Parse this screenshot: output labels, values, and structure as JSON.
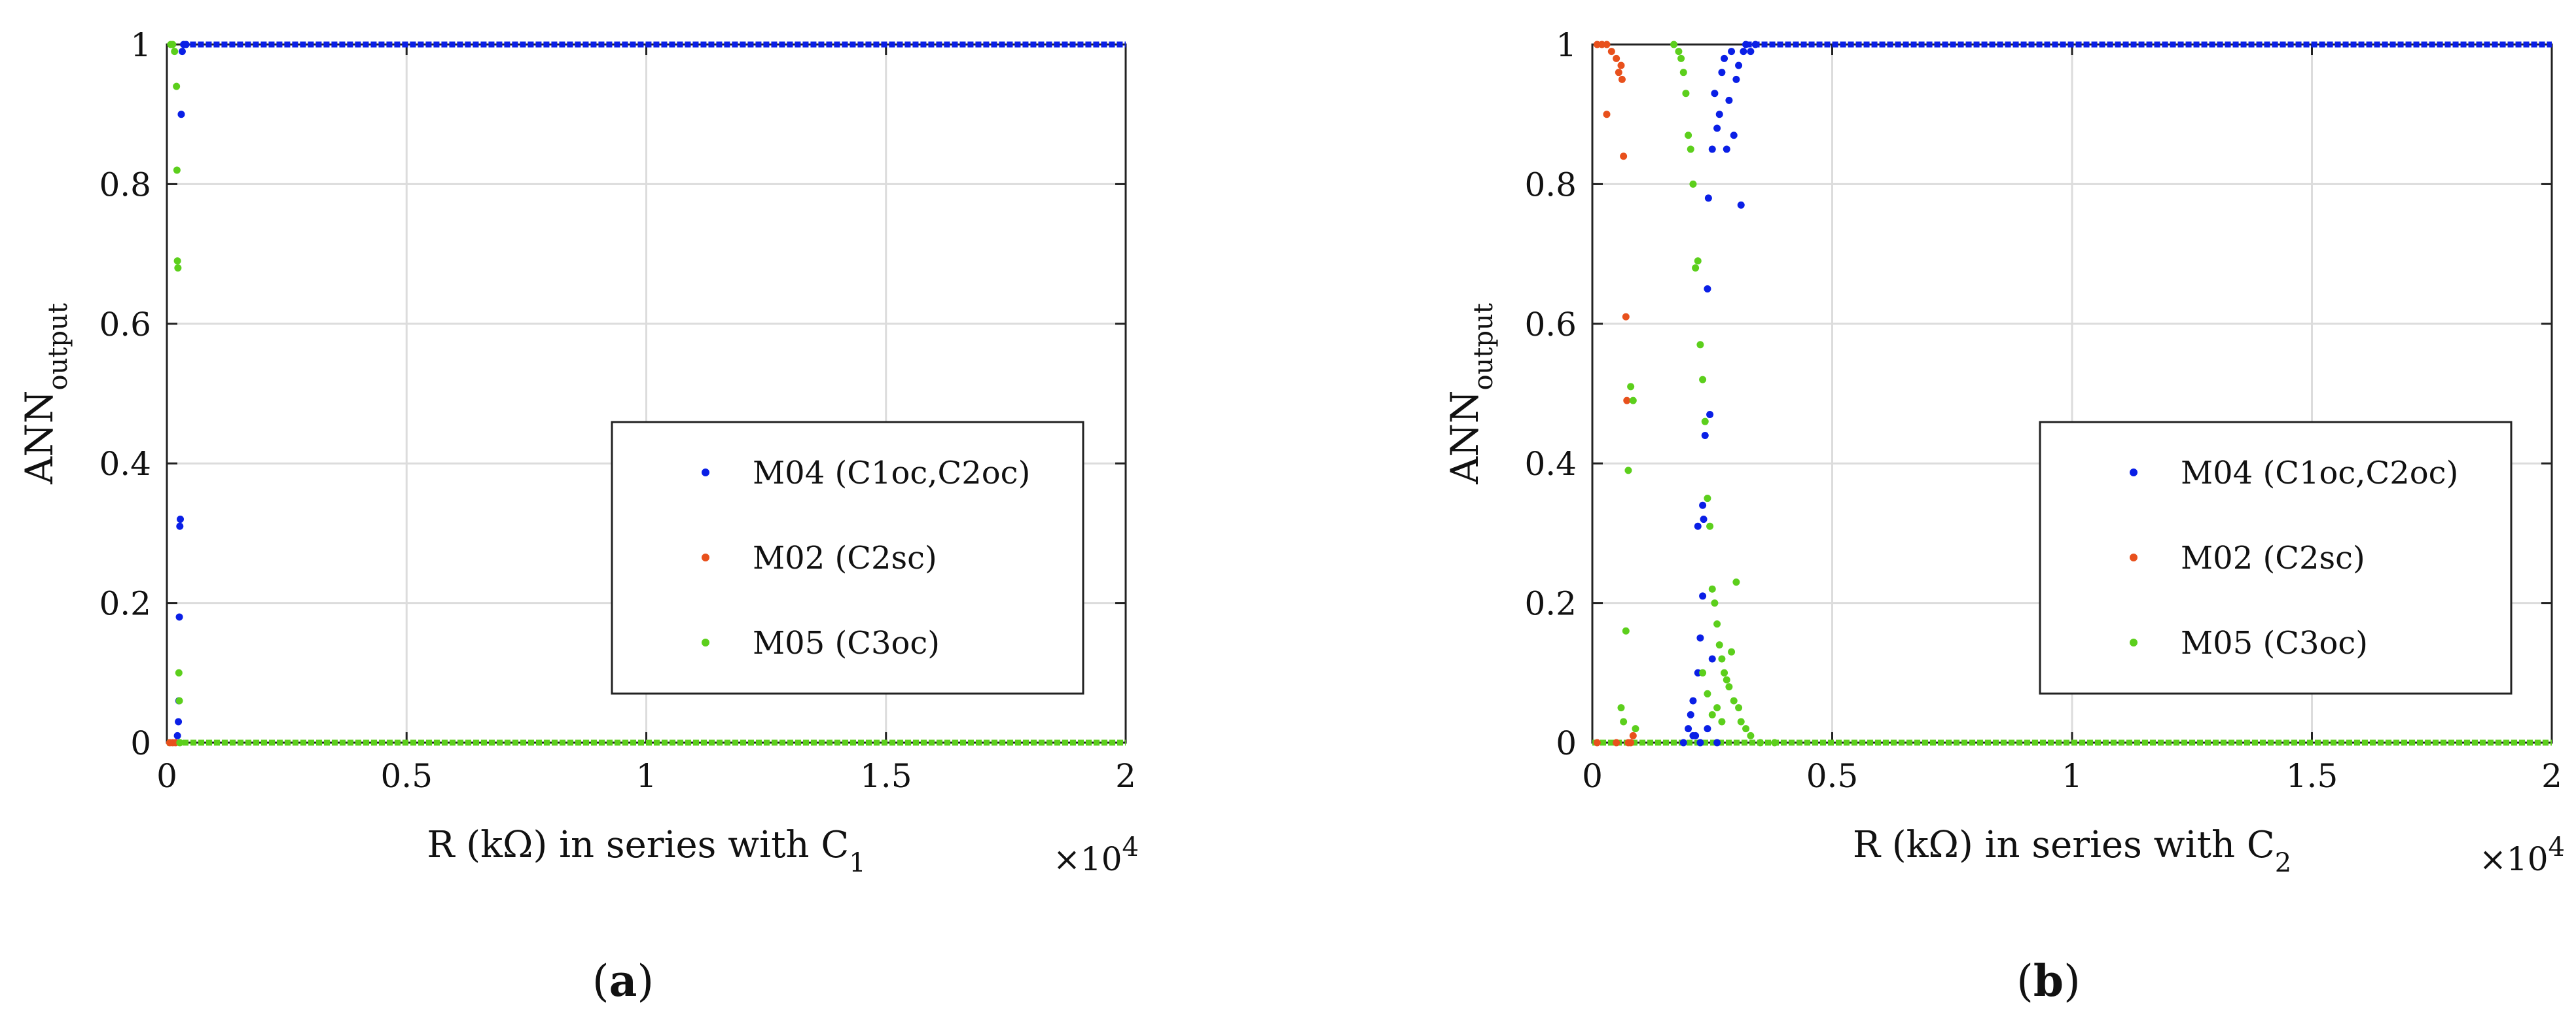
{
  "chart_data": [
    {
      "type": "scatter",
      "panel": "a",
      "caption_letter": "a",
      "xlabel_main": "R (kΩ) in series with C",
      "xlabel_sub": "1",
      "ylabel_main": "ANN",
      "ylabel_sub": "output",
      "x_multiplier": "×10",
      "x_multiplier_exp": "4",
      "xlim": [
        0,
        20000
      ],
      "ylim": [
        0,
        1
      ],
      "xticks": [
        0,
        5000,
        10000,
        15000,
        20000
      ],
      "xtick_labels": [
        "0",
        "0.5",
        "1",
        "1.5",
        "2"
      ],
      "yticks": [
        0,
        0.2,
        0.4,
        0.6,
        0.8,
        1
      ],
      "ytick_labels": [
        "0",
        "0.2",
        "0.4",
        "0.6",
        "0.8",
        "1"
      ],
      "grid": true,
      "legend_position": "lower-right",
      "series": [
        {
          "name": "M04 (C1oc,C2oc)",
          "color": "#0a1fe6",
          "points": [
            [
              220,
              0.01
            ],
            [
              240,
              0.03
            ],
            [
              250,
              0.06
            ],
            [
              260,
              0.18
            ],
            [
              270,
              0.31
            ],
            [
              280,
              0.32
            ],
            [
              300,
              0.9
            ],
            [
              320,
              0.99
            ],
            [
              350,
              1.0
            ],
            [
              400,
              1.0
            ]
          ],
          "line_y": 1,
          "line_from": 320,
          "line_to": 20000
        },
        {
          "name": "M02 (C2sc)",
          "color": "#e8501c",
          "points": [
            [
              60,
              0.0
            ],
            [
              120,
              0.0
            ],
            [
              180,
              0.0
            ]
          ],
          "line_y": null,
          "line_from": null,
          "line_to": null
        },
        {
          "name": "M05 (C3oc)",
          "color": "#5ccf1c",
          "points": [
            [
              80,
              1.0
            ],
            [
              120,
              1.0
            ],
            [
              160,
              0.99
            ],
            [
              200,
              0.94
            ],
            [
              210,
              0.82
            ],
            [
              220,
              0.69
            ],
            [
              230,
              0.68
            ],
            [
              250,
              0.1
            ],
            [
              260,
              0.06
            ],
            [
              270,
              0.0
            ]
          ],
          "line_y": 0,
          "line_from": 0,
          "line_to": 20000
        }
      ]
    },
    {
      "type": "scatter",
      "panel": "b",
      "caption_letter": "b",
      "xlabel_main": "R (kΩ) in series with C",
      "xlabel_sub": "2",
      "ylabel_main": "ANN",
      "ylabel_sub": "output",
      "x_multiplier": "×10",
      "x_multiplier_exp": "4",
      "xlim": [
        0,
        20000
      ],
      "ylim": [
        0,
        1
      ],
      "xticks": [
        0,
        5000,
        10000,
        15000,
        20000
      ],
      "xtick_labels": [
        "0",
        "0.5",
        "1",
        "1.5",
        "2"
      ],
      "yticks": [
        0,
        0.2,
        0.4,
        0.6,
        0.8,
        1
      ],
      "ytick_labels": [
        "0",
        "0.2",
        "0.4",
        "0.6",
        "0.8",
        "1"
      ],
      "grid": true,
      "legend_position": "lower-right",
      "series": [
        {
          "name": "M04 (C1oc,C2oc)",
          "color": "#0a1fe6",
          "points": [
            [
              1900,
              0.0
            ],
            [
              2000,
              0.02
            ],
            [
              2050,
              0.04
            ],
            [
              2100,
              0.06
            ],
            [
              2150,
              0.01
            ],
            [
              2200,
              0.1
            ],
            [
              2250,
              0.15
            ],
            [
              2300,
              0.21
            ],
            [
              2320,
              0.32
            ],
            [
              2350,
              0.44
            ],
            [
              2400,
              0.65
            ],
            [
              2420,
              0.78
            ],
            [
              2450,
              0.47
            ],
            [
              2500,
              0.85
            ],
            [
              2550,
              0.93
            ],
            [
              2600,
              0.88
            ],
            [
              2650,
              0.9
            ],
            [
              2700,
              0.96
            ],
            [
              2750,
              0.98
            ],
            [
              2800,
              0.85
            ],
            [
              2850,
              0.92
            ],
            [
              2900,
              0.99
            ],
            [
              2950,
              0.87
            ],
            [
              3000,
              0.95
            ],
            [
              3050,
              0.97
            ],
            [
              3100,
              0.77
            ],
            [
              3150,
              0.99
            ],
            [
              3200,
              1.0
            ],
            [
              3300,
              0.99
            ],
            [
              3400,
              1.0
            ],
            [
              2200,
              0.31
            ],
            [
              2300,
              0.34
            ],
            [
              2100,
              0.01
            ],
            [
              2500,
              0.12
            ],
            [
              2600,
              0.0
            ],
            [
              2400,
              0.02
            ],
            [
              2250,
              0.0
            ]
          ],
          "line_y": 1,
          "line_from": 3200,
          "line_to": 20000
        },
        {
          "name": "M02 (C2sc)",
          "color": "#e8501c",
          "points": [
            [
              100,
              1.0
            ],
            [
              200,
              1.0
            ],
            [
              300,
              1.0
            ],
            [
              400,
              0.99
            ],
            [
              500,
              0.98
            ],
            [
              550,
              0.96
            ],
            [
              600,
              0.97
            ],
            [
              620,
              0.95
            ],
            [
              650,
              0.84
            ],
            [
              700,
              0.61
            ],
            [
              720,
              0.49
            ],
            [
              750,
              0.0
            ],
            [
              800,
              0.0
            ],
            [
              850,
              0.01
            ],
            [
              300,
              0.9
            ],
            [
              500,
              0.0
            ],
            [
              100,
              0.0
            ]
          ],
          "line_y": null,
          "line_from": null,
          "line_to": null
        },
        {
          "name": "M05 (C3oc)",
          "color": "#5ccf1c",
          "points": [
            [
              600,
              0.05
            ],
            [
              650,
              0.03
            ],
            [
              700,
              0.16
            ],
            [
              750,
              0.39
            ],
            [
              800,
              0.51
            ],
            [
              850,
              0.49
            ],
            [
              900,
              0.02
            ],
            [
              1700,
              1.0
            ],
            [
              1800,
              0.99
            ],
            [
              1850,
              0.98
            ],
            [
              1900,
              0.96
            ],
            [
              1950,
              0.93
            ],
            [
              2000,
              0.87
            ],
            [
              2050,
              0.85
            ],
            [
              2100,
              0.8
            ],
            [
              2150,
              0.68
            ],
            [
              2200,
              0.69
            ],
            [
              2250,
              0.57
            ],
            [
              2300,
              0.52
            ],
            [
              2350,
              0.46
            ],
            [
              2400,
              0.35
            ],
            [
              2450,
              0.31
            ],
            [
              2500,
              0.22
            ],
            [
              2550,
              0.2
            ],
            [
              2600,
              0.17
            ],
            [
              2650,
              0.14
            ],
            [
              2700,
              0.12
            ],
            [
              2750,
              0.1
            ],
            [
              2800,
              0.09
            ],
            [
              2850,
              0.08
            ],
            [
              2900,
              0.13
            ],
            [
              2950,
              0.06
            ],
            [
              3000,
              0.23
            ],
            [
              3050,
              0.05
            ],
            [
              3100,
              0.03
            ],
            [
              3200,
              0.02
            ],
            [
              3300,
              0.01
            ],
            [
              3500,
              0.0
            ],
            [
              3800,
              0.0
            ],
            [
              2300,
              0.1
            ],
            [
              2400,
              0.07
            ],
            [
              2500,
              0.04
            ],
            [
              2600,
              0.05
            ],
            [
              2700,
              0.03
            ]
          ],
          "line_y": 0,
          "line_from": 0,
          "line_to": 20000
        }
      ]
    }
  ]
}
